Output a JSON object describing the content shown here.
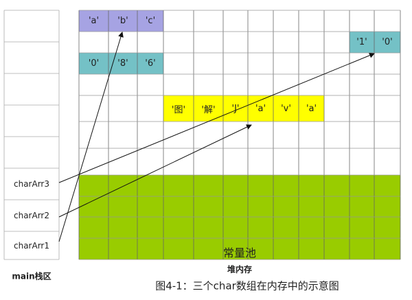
{
  "stack": {
    "label": "main栈区",
    "slots": [
      "",
      "",
      "",
      "",
      "",
      "charArr3",
      "charArr2",
      "charArr1"
    ]
  },
  "heap": {
    "label": "堆内存",
    "constant_pool_label": "常量池",
    "arrays": [
      {
        "name": "charArr1",
        "values": [
          "'a'",
          "'b'",
          "'c'"
        ],
        "color": "#a6a3e3"
      },
      {
        "name": "charArr2",
        "values": [
          "'图'",
          "'解'",
          "'J'",
          "'a'",
          "'v'",
          "'a'"
        ],
        "color": "#ffff00"
      },
      {
        "name": "charArr3",
        "values": [
          "'1'",
          "'0'"
        ],
        "color": "#74c1c6"
      },
      {
        "name": "",
        "values": [
          "'0'",
          "'8'",
          "'6'"
        ],
        "color": "#74c1c6"
      }
    ],
    "constant_pool_color": "#99cc00"
  },
  "caption": "图4-1：三个char数组在内存中的示意图"
}
